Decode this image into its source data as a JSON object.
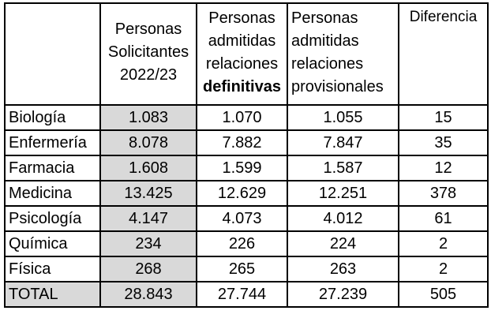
{
  "columns": [
    {
      "lines": [
        "Personas",
        "Solicitantes",
        "2022/23"
      ]
    },
    {
      "lines": [
        "Personas",
        "admitidas",
        "relaciones"
      ],
      "bold_line": "definitivas"
    },
    {
      "lines": [
        "Personas",
        "admitidas",
        "relaciones",
        "provisionales"
      ]
    },
    {
      "lines": [
        "Diferencia"
      ]
    }
  ],
  "rows": [
    {
      "name": "Biología",
      "solicitantes": "1.083",
      "definitivas": "1.070",
      "provisionales": "1.055",
      "diferencia": "15"
    },
    {
      "name": "Enfermería",
      "solicitantes": "8.078",
      "definitivas": "7.882",
      "provisionales": "7.847",
      "diferencia": "35"
    },
    {
      "name": "Farmacia",
      "solicitantes": "1.608",
      "definitivas": "1.599",
      "provisionales": "1.587",
      "diferencia": "12"
    },
    {
      "name": "Medicina",
      "solicitantes": "13.425",
      "definitivas": "12.629",
      "provisionales": "12.251",
      "diferencia": "378"
    },
    {
      "name": "Psicología",
      "solicitantes": "4.147",
      "definitivas": "4.073",
      "provisionales": "4.012",
      "diferencia": "61"
    },
    {
      "name": "Química",
      "solicitantes": "234",
      "definitivas": "226",
      "provisionales": "224",
      "diferencia": "2"
    },
    {
      "name": "Física",
      "solicitantes": "268",
      "definitivas": "265",
      "provisionales": "263",
      "diferencia": "2"
    },
    {
      "name": "TOTAL",
      "solicitantes": "28.843",
      "definitivas": "27.744",
      "provisionales": "27.239",
      "diferencia": "505"
    }
  ],
  "colors": {
    "highlight_column": "#d9d9d9",
    "border": "#000000"
  }
}
